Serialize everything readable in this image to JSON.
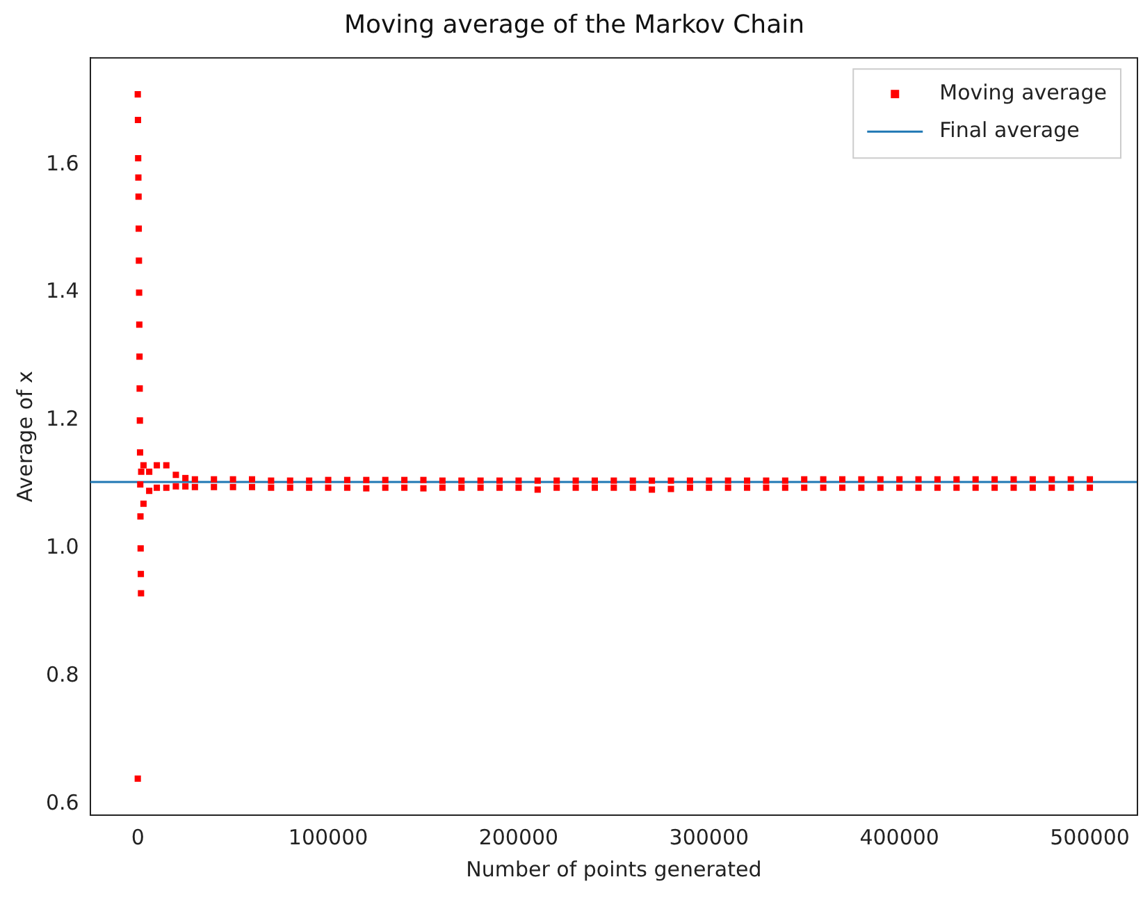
{
  "chart_data": {
    "type": "scatter",
    "title": "Moving average of the Markov Chain",
    "xlabel": "Number of points generated",
    "ylabel": "Average of x",
    "xlim": [
      -25000,
      525000
    ],
    "xticks": [
      0,
      100000,
      200000,
      300000,
      400000,
      500000
    ],
    "ylim": [
      0.583,
      1.767
    ],
    "yticks": [
      0.6,
      0.8,
      {
        "value": 1,
        "label": "1.0"
      },
      1.2,
      1.4,
      1.6
    ],
    "legend": "top right",
    "grid": false,
    "marker": "square",
    "series": [
      {
        "name": "Moving average",
        "color": "#ff0000",
        "x": [
          0,
          100,
          200,
          300,
          400,
          500,
          600,
          700,
          800,
          900,
          1000,
          1100,
          1200,
          1300,
          1400,
          1500,
          1600,
          1700,
          1800,
          0,
          3000,
          3000,
          6000,
          6000,
          10000,
          10000,
          15000,
          15000,
          20000,
          20000,
          25000,
          25000,
          30000,
          30000,
          40000,
          40000,
          50000,
          50000,
          60000,
          60000,
          70000,
          70000,
          80000,
          80000,
          90000,
          90000,
          100000,
          100000,
          110000,
          110000,
          120000,
          120000,
          130000,
          130000,
          140000,
          140000,
          150000,
          150000,
          160000,
          160000,
          170000,
          170000,
          180000,
          180000,
          190000,
          190000,
          200000,
          200000,
          210000,
          210000,
          220000,
          220000,
          230000,
          230000,
          240000,
          240000,
          250000,
          250000,
          260000,
          260000,
          270000,
          270000,
          280000,
          280000,
          290000,
          290000,
          300000,
          300000,
          310000,
          310000,
          320000,
          320000,
          330000,
          330000,
          340000,
          340000,
          350000,
          350000,
          360000,
          360000,
          370000,
          370000,
          380000,
          380000,
          390000,
          390000,
          400000,
          400000,
          410000,
          410000,
          420000,
          420000,
          430000,
          430000,
          440000,
          440000,
          450000,
          450000,
          460000,
          460000,
          470000,
          470000,
          480000,
          480000,
          490000,
          490000,
          500000,
          500000
        ],
        "values": [
          1.71,
          1.67,
          1.61,
          1.58,
          1.55,
          1.5,
          1.45,
          1.4,
          1.35,
          1.3,
          1.25,
          1.2,
          1.15,
          1.1,
          1.05,
          1.0,
          0.96,
          0.93,
          1.12,
          0.64,
          1.13,
          1.07,
          1.12,
          1.09,
          1.13,
          1.095,
          1.13,
          1.095,
          1.115,
          1.097,
          1.11,
          1.097,
          1.108,
          1.096,
          1.108,
          1.096,
          1.108,
          1.096,
          1.108,
          1.096,
          1.106,
          1.095,
          1.106,
          1.095,
          1.106,
          1.095,
          1.107,
          1.095,
          1.107,
          1.095,
          1.107,
          1.094,
          1.107,
          1.095,
          1.107,
          1.095,
          1.107,
          1.094,
          1.106,
          1.095,
          1.106,
          1.095,
          1.106,
          1.095,
          1.106,
          1.095,
          1.106,
          1.095,
          1.106,
          1.092,
          1.106,
          1.095,
          1.106,
          1.095,
          1.106,
          1.095,
          1.106,
          1.095,
          1.106,
          1.095,
          1.106,
          1.092,
          1.106,
          1.093,
          1.106,
          1.095,
          1.106,
          1.095,
          1.106,
          1.095,
          1.106,
          1.095,
          1.106,
          1.095,
          1.106,
          1.095,
          1.108,
          1.095,
          1.108,
          1.095,
          1.108,
          1.095,
          1.108,
          1.095,
          1.108,
          1.095,
          1.108,
          1.095,
          1.108,
          1.095,
          1.108,
          1.095,
          1.108,
          1.095,
          1.108,
          1.095,
          1.108,
          1.095,
          1.108,
          1.095,
          1.108,
          1.095,
          1.108,
          1.095,
          1.108,
          1.095,
          1.108,
          1.095
        ]
      },
      {
        "name": "Final average",
        "color": "#1f77b4",
        "type": "line",
        "marker": "none",
        "x": [
          -25000,
          525000
        ],
        "values": [
          1.104,
          1.104
        ]
      }
    ]
  }
}
